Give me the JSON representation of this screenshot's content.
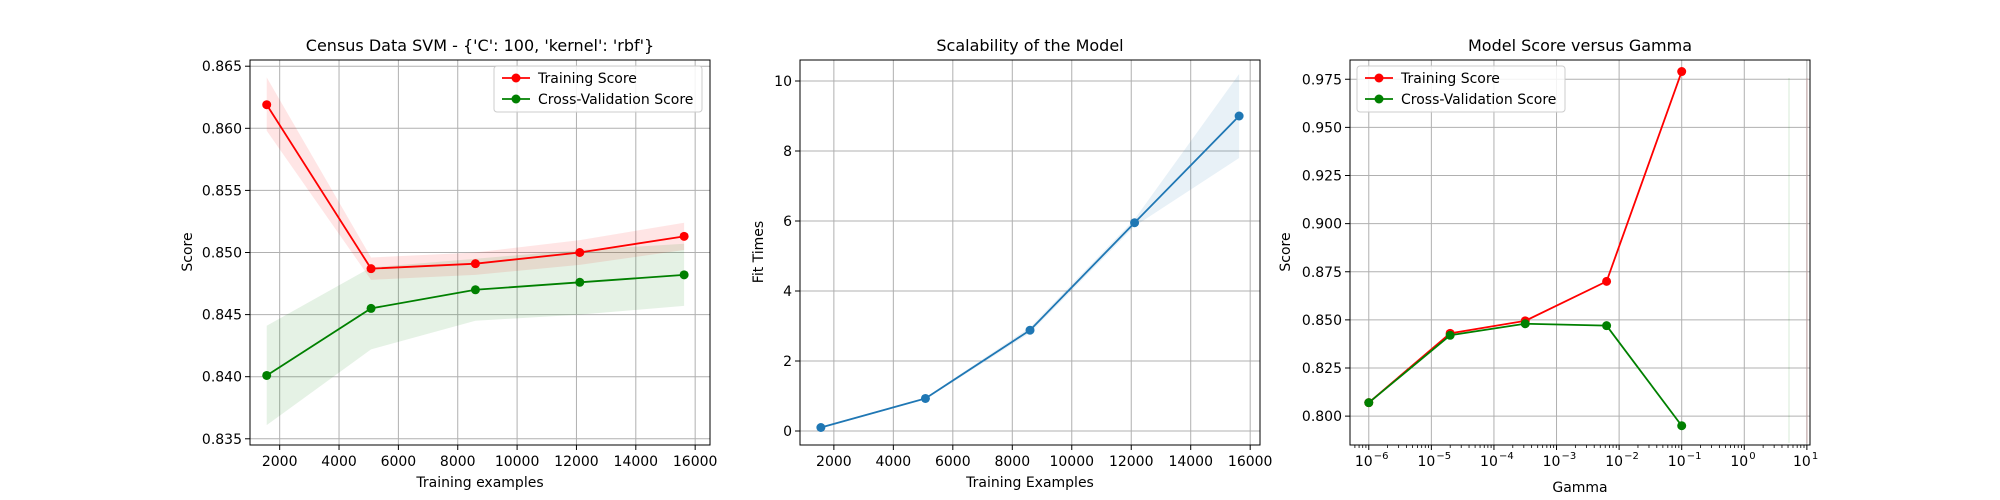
{
  "chart_data": [
    {
      "type": "line",
      "title": "Census Data SVM - {'C': 100, 'kernel': 'rbf'}",
      "xlabel": "Training examples",
      "ylabel": "Score",
      "xlim": [
        1000,
        16500
      ],
      "ylim": [
        0.8345,
        0.8655
      ],
      "xticks": [
        2000,
        4000,
        6000,
        8000,
        10000,
        12000,
        14000,
        16000
      ],
      "xtick_labels": [
        "2000",
        "4000",
        "6000",
        "8000",
        "10000",
        "12000",
        "14000",
        "16000"
      ],
      "yticks": [
        0.835,
        0.84,
        0.845,
        0.85,
        0.855,
        0.86,
        0.865
      ],
      "ytick_labels": [
        "0.835",
        "0.840",
        "0.845",
        "0.850",
        "0.855",
        "0.860",
        "0.865"
      ],
      "grid": true,
      "legend_position": "top-right",
      "x": [
        1563,
        5079,
        8596,
        12112,
        15628
      ],
      "series": [
        {
          "name": "Training Score",
          "color": "#ff0000",
          "values": [
            0.8619,
            0.8487,
            0.8491,
            0.85,
            0.8513
          ],
          "band_low": [
            0.8598,
            0.8478,
            0.8482,
            0.849,
            0.8502
          ],
          "band_high": [
            0.8641,
            0.8496,
            0.85,
            0.851,
            0.8524
          ]
        },
        {
          "name": "Cross-Validation Score",
          "color": "#008000",
          "values": [
            0.8401,
            0.8455,
            0.847,
            0.8476,
            0.8482
          ],
          "band_low": [
            0.8361,
            0.8422,
            0.8445,
            0.845,
            0.8457
          ],
          "band_high": [
            0.8441,
            0.8488,
            0.8495,
            0.8502,
            0.8507
          ]
        }
      ]
    },
    {
      "type": "line",
      "title": "Scalability of the Model",
      "xlabel": "Training Examples",
      "ylabel": "Fit Times",
      "xlim": [
        861,
        16330
      ],
      "ylim": [
        -0.4,
        10.6
      ],
      "xticks": [
        2000,
        4000,
        6000,
        8000,
        10000,
        12000,
        14000,
        16000
      ],
      "xtick_labels": [
        "2000",
        "4000",
        "6000",
        "8000",
        "10000",
        "12000",
        "14000",
        "16000"
      ],
      "yticks": [
        0,
        2,
        4,
        6,
        8,
        10
      ],
      "ytick_labels": [
        "0",
        "2",
        "4",
        "6",
        "8",
        "10"
      ],
      "grid": true,
      "x": [
        1563,
        5079,
        8596,
        12112,
        15628
      ],
      "series": [
        {
          "name": "",
          "color": "#1f77b4",
          "values": [
            0.1,
            0.93,
            2.88,
            5.95,
            9.0
          ],
          "band_low": [
            0.08,
            0.9,
            2.8,
            5.85,
            7.8
          ],
          "band_high": [
            0.12,
            0.96,
            2.96,
            6.05,
            10.2
          ]
        }
      ]
    },
    {
      "type": "line",
      "title": "Model Score versus Gamma",
      "xlabel": "Gamma",
      "ylabel": "Score",
      "xscale": "log",
      "xlim_exp": [
        -6.3,
        1.05
      ],
      "ylim": [
        0.785,
        0.985
      ],
      "xtick_exps": [
        -6,
        -5,
        -4,
        -3,
        -2,
        -1,
        0,
        1
      ],
      "xtick_labels": [
        "10",
        "10",
        "10",
        "10",
        "10",
        "10",
        "10",
        "10"
      ],
      "xtick_superscripts": [
        "−6",
        "−5",
        "−4",
        "−3",
        "−2",
        "−1",
        "0",
        "1"
      ],
      "yticks": [
        0.8,
        0.825,
        0.85,
        0.875,
        0.9,
        0.925,
        0.95,
        0.975
      ],
      "ytick_labels": [
        "0.800",
        "0.825",
        "0.850",
        "0.875",
        "0.900",
        "0.925",
        "0.950",
        "0.975"
      ],
      "grid": true,
      "legend_position": "top-left",
      "x_exps": [
        -6,
        -4.7,
        -3.5,
        -2.2,
        -1
      ],
      "series": [
        {
          "name": "Training Score",
          "color": "#ff0000",
          "values": [
            0.807,
            0.843,
            0.8495,
            0.87,
            0.979
          ]
        },
        {
          "name": "Cross-Validation Score",
          "color": "#008000",
          "values": [
            0.807,
            0.842,
            0.848,
            0.847,
            0.795
          ]
        }
      ]
    }
  ]
}
